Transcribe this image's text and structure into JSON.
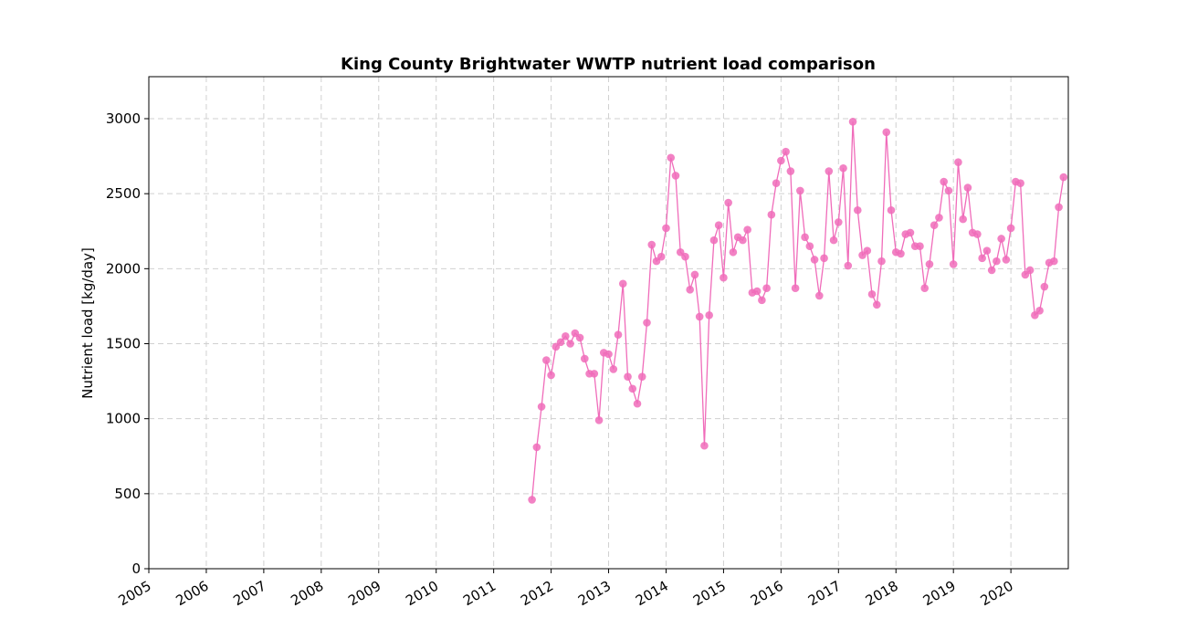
{
  "chart_data": {
    "type": "line",
    "title": "King County Brightwater WWTP nutrient load comparison",
    "xlabel": "",
    "ylabel": "Nutrient load [kg/day]",
    "x_axis_type": "date",
    "xlim": [
      "2005-01-01",
      "2020-12-31"
    ],
    "ylim": [
      0,
      3280
    ],
    "x_ticks": [
      "2005",
      "2006",
      "2007",
      "2008",
      "2009",
      "2010",
      "2011",
      "2012",
      "2013",
      "2014",
      "2015",
      "2016",
      "2017",
      "2018",
      "2019",
      "2020"
    ],
    "y_ticks": [
      0,
      500,
      1000,
      1500,
      2000,
      2500,
      3000
    ],
    "grid": true,
    "color": "#f06cba",
    "series": [
      {
        "x": [
          "2011-09",
          "2011-10",
          "2011-11",
          "2011-12",
          "2012-01",
          "2012-02",
          "2012-03",
          "2012-04",
          "2012-05",
          "2012-06",
          "2012-07",
          "2012-08",
          "2012-09",
          "2012-10",
          "2012-11",
          "2012-12",
          "2013-01",
          "2013-02",
          "2013-03",
          "2013-04",
          "2013-05",
          "2013-06",
          "2013-07",
          "2013-08",
          "2013-09",
          "2013-10",
          "2013-11",
          "2013-12",
          "2014-01",
          "2014-02",
          "2014-03",
          "2014-04",
          "2014-05",
          "2014-06",
          "2014-07",
          "2014-08",
          "2014-09",
          "2014-10",
          "2014-11",
          "2014-12",
          "2015-01",
          "2015-02",
          "2015-03",
          "2015-04",
          "2015-05",
          "2015-06",
          "2015-07",
          "2015-08",
          "2015-09",
          "2015-10",
          "2015-11",
          "2015-12",
          "2016-01",
          "2016-02",
          "2016-03",
          "2016-04",
          "2016-05",
          "2016-06",
          "2016-07",
          "2016-08",
          "2016-09",
          "2016-10",
          "2016-11",
          "2016-12",
          "2017-01",
          "2017-02",
          "2017-03",
          "2017-04",
          "2017-05",
          "2017-06",
          "2017-07",
          "2017-08",
          "2017-09",
          "2017-10",
          "2017-11",
          "2017-12",
          "2018-01",
          "2018-02",
          "2018-03",
          "2018-04",
          "2018-05",
          "2018-06",
          "2018-07",
          "2018-08",
          "2018-09",
          "2018-10",
          "2018-11",
          "2018-12",
          "2019-01",
          "2019-02",
          "2019-03",
          "2019-04",
          "2019-05",
          "2019-06",
          "2019-07",
          "2019-08",
          "2019-09",
          "2019-10",
          "2019-11",
          "2019-12",
          "2020-01",
          "2020-02",
          "2020-03",
          "2020-04",
          "2020-05",
          "2020-06",
          "2020-07",
          "2020-08",
          "2020-09",
          "2020-10",
          "2020-11",
          "2020-12"
        ],
        "values": [
          460,
          810,
          1080,
          1390,
          1290,
          1480,
          1510,
          1550,
          1500,
          1570,
          1540,
          1400,
          1300,
          1300,
          990,
          1440,
          1430,
          1330,
          1560,
          1900,
          1280,
          1200,
          1100,
          1280,
          1640,
          2160,
          2050,
          2080,
          2270,
          2740,
          2620,
          2110,
          2080,
          1860,
          1960,
          1680,
          820,
          1690,
          2190,
          2290,
          1940,
          2440,
          2110,
          2210,
          2190,
          2260,
          1840,
          1850,
          1790,
          1870,
          2360,
          2570,
          2720,
          2780,
          2650,
          1870,
          2520,
          2210,
          2150,
          2060,
          1820,
          2070,
          2650,
          2190,
          2310,
          2670,
          2020,
          2980,
          2390,
          2090,
          2120,
          1830,
          1760,
          2050,
          2910,
          2390,
          2110,
          2100,
          2230,
          2240,
          2150,
          2150,
          1870,
          2030,
          2290,
          2340,
          2580,
          2520,
          2030,
          2710,
          2330,
          2540,
          2240,
          2230,
          2070,
          2120,
          1990,
          2050,
          2200,
          2060,
          2270,
          2580,
          2570,
          1960,
          1990,
          1690,
          1720,
          1880,
          2040,
          2050,
          2410,
          2610
        ]
      }
    ]
  }
}
